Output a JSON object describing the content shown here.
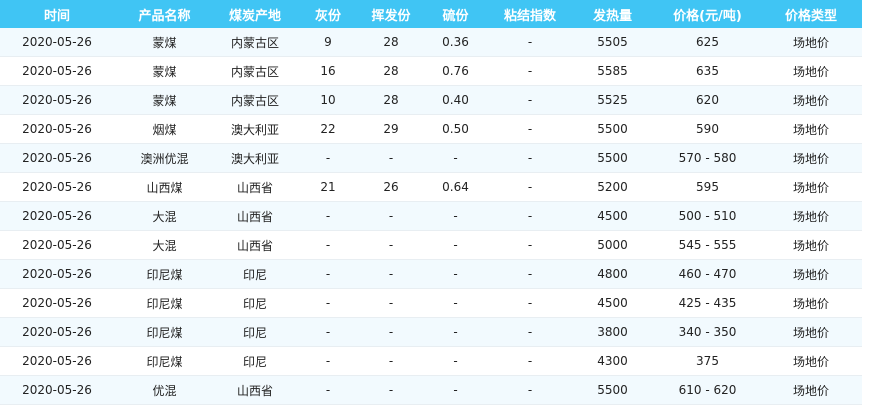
{
  "columns": [
    "时间",
    "产品名称",
    "煤炭产地",
    "灰份",
    "挥发份",
    "硫份",
    "粘结指数",
    "发热量",
    "价格(元/吨)",
    "价格类型"
  ],
  "rows": [
    [
      "2020-05-26",
      "蒙煤",
      "内蒙古区",
      "9",
      "28",
      "0.36",
      "-",
      "5505",
      "625",
      "场地价"
    ],
    [
      "2020-05-26",
      "蒙煤",
      "内蒙古区",
      "16",
      "28",
      "0.76",
      "-",
      "5585",
      "635",
      "场地价"
    ],
    [
      "2020-05-26",
      "蒙煤",
      "内蒙古区",
      "10",
      "28",
      "0.40",
      "-",
      "5525",
      "620",
      "场地价"
    ],
    [
      "2020-05-26",
      "烟煤",
      "澳大利亚",
      "22",
      "29",
      "0.50",
      "-",
      "5500",
      "590",
      "场地价"
    ],
    [
      "2020-05-26",
      "澳洲优混",
      "澳大利亚",
      "-",
      "-",
      "-",
      "-",
      "5500",
      "570 - 580",
      "场地价"
    ],
    [
      "2020-05-26",
      "山西煤",
      "山西省",
      "21",
      "26",
      "0.64",
      "-",
      "5200",
      "595",
      "场地价"
    ],
    [
      "2020-05-26",
      "大混",
      "山西省",
      "-",
      "-",
      "-",
      "-",
      "4500",
      "500 - 510",
      "场地价"
    ],
    [
      "2020-05-26",
      "大混",
      "山西省",
      "-",
      "-",
      "-",
      "-",
      "5000",
      "545 - 555",
      "场地价"
    ],
    [
      "2020-05-26",
      "印尼煤",
      "印尼",
      "-",
      "-",
      "-",
      "-",
      "4800",
      "460 - 470",
      "场地价"
    ],
    [
      "2020-05-26",
      "印尼煤",
      "印尼",
      "-",
      "-",
      "-",
      "-",
      "4500",
      "425 - 435",
      "场地价"
    ],
    [
      "2020-05-26",
      "印尼煤",
      "印尼",
      "-",
      "-",
      "-",
      "-",
      "3800",
      "340 - 350",
      "场地价"
    ],
    [
      "2020-05-26",
      "印尼煤",
      "印尼",
      "-",
      "-",
      "-",
      "-",
      "4300",
      "375",
      "场地价"
    ],
    [
      "2020-05-26",
      "优混",
      "山西省",
      "-",
      "-",
      "-",
      "-",
      "5500",
      "610 - 620",
      "场地价"
    ]
  ],
  "colors": {
    "header_bg": "#40c5f4",
    "row_alt": "#f2fafe"
  }
}
